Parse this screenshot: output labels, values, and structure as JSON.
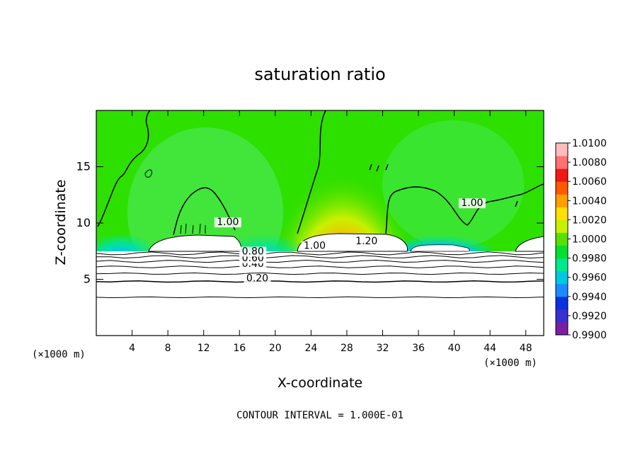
{
  "chart_data": {
    "type": "heatmap",
    "title": "saturation ratio",
    "xlabel": "X-coordinate",
    "ylabel": "Z-coordinate",
    "x_unit_label": "(×1000 m)",
    "x_unit_label_right": "(×1000 m)",
    "xlim": [
      0,
      50
    ],
    "ylim": [
      0,
      20
    ],
    "x_ticks": [
      4,
      8,
      12,
      16,
      20,
      24,
      28,
      32,
      36,
      40,
      44,
      48
    ],
    "y_ticks": [
      5,
      10,
      15
    ],
    "colorbar": {
      "min": 0.99,
      "max": 1.01,
      "ticks": [
        "1.0100",
        "1.0080",
        "1.0060",
        "1.0040",
        "1.0020",
        "1.0000",
        "0.9980",
        "0.9960",
        "0.9940",
        "0.9920",
        "0.9900"
      ],
      "colors": [
        "#7a1fa2",
        "#3a2fd0",
        "#0a30e0",
        "#1a8cff",
        "#00c8e0",
        "#00e890",
        "#00e030",
        "#58e000",
        "#c8f000",
        "#ffe000",
        "#ffa000",
        "#ff5a00",
        "#f01818",
        "#ff7070",
        "#ffbcbc"
      ]
    },
    "contour_labels": [
      {
        "text": "0.20",
        "x": 18.0,
        "z": 4.8
      },
      {
        "text": "0.40",
        "x": 17.5,
        "z": 6.1
      },
      {
        "text": "0.60",
        "x": 17.5,
        "z": 6.6
      },
      {
        "text": "0.80",
        "x": 17.5,
        "z": 7.2
      },
      {
        "text": "1.00",
        "x": 24.4,
        "z": 7.7
      },
      {
        "text": "1.20",
        "x": 30.2,
        "z": 8.1
      },
      {
        "text": "1.00",
        "x": 14.7,
        "z": 9.8
      },
      {
        "text": "1.00",
        "x": 42.0,
        "z": 11.5
      }
    ],
    "low_contours_z": [
      3.4,
      4.8,
      5.5,
      6.1,
      6.6,
      7.0,
      7.3
    ],
    "annotation": "CONTOUR INTERVAL = 1.000E-01",
    "grid": false,
    "legend": "right"
  }
}
